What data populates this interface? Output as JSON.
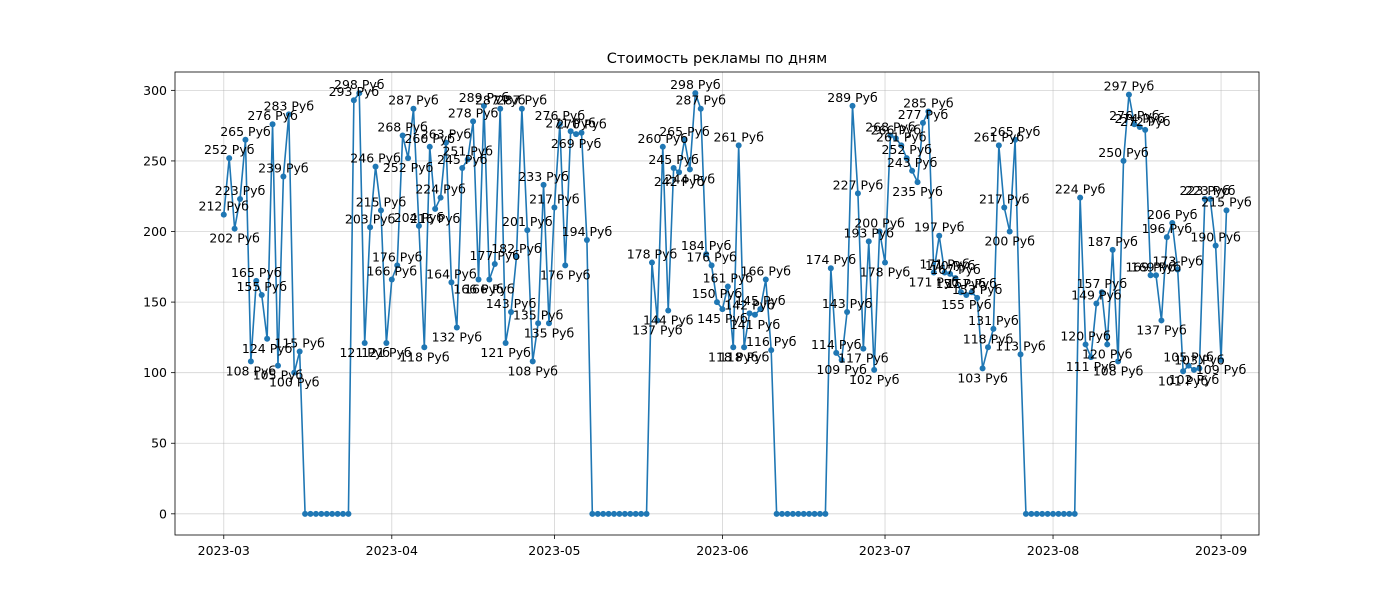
{
  "chart_data": {
    "type": "line",
    "title": "Стоимость рекламы по дням",
    "xlabel": "",
    "ylabel": "",
    "label_suffix": " Руб",
    "x_start": "2023-03-01",
    "x_end": "2023-08-31",
    "xlim": [
      "2023-02-20",
      "2023-09-08"
    ],
    "ylim": [
      -15,
      313
    ],
    "x_ticks": [
      {
        "date": "2023-03-01",
        "label": "2023-03"
      },
      {
        "date": "2023-04-01",
        "label": "2023-04"
      },
      {
        "date": "2023-05-01",
        "label": "2023-05"
      },
      {
        "date": "2023-06-01",
        "label": "2023-06"
      },
      {
        "date": "2023-07-01",
        "label": "2023-07"
      },
      {
        "date": "2023-08-01",
        "label": "2023-08"
      },
      {
        "date": "2023-09-01",
        "label": "2023-09"
      }
    ],
    "y_ticks": [
      0,
      50,
      100,
      150,
      200,
      250,
      300
    ],
    "grid": true,
    "color": "#1f77b4",
    "series": [
      {
        "values": [
          212,
          252,
          202,
          223,
          265,
          108,
          165,
          155,
          124,
          276,
          105,
          239,
          283,
          100,
          115,
          0,
          0,
          0,
          0,
          0,
          0,
          0,
          0,
          0,
          293,
          298,
          121,
          203,
          246,
          215,
          121,
          166,
          176,
          268,
          252,
          287,
          204,
          118,
          260,
          216,
          224,
          263,
          164,
          132,
          245,
          251,
          278,
          166,
          289,
          166,
          177,
          287,
          121,
          143,
          182,
          287,
          201,
          108,
          135,
          233,
          135,
          217,
          276,
          176,
          271,
          269,
          270,
          194,
          0,
          0,
          0,
          0,
          0,
          0,
          0,
          0,
          0,
          0,
          0,
          178,
          137,
          260,
          144,
          245,
          242,
          265,
          244,
          298,
          287,
          184,
          176,
          150,
          145,
          161,
          118,
          261,
          118,
          142,
          141,
          145,
          166,
          116,
          0,
          0,
          0,
          0,
          0,
          0,
          0,
          0,
          0,
          0,
          174,
          114,
          109,
          143,
          289,
          227,
          117,
          193,
          102,
          200,
          178,
          268,
          266,
          261,
          252,
          243,
          235,
          277,
          285,
          171,
          197,
          171,
          170,
          167,
          157,
          155,
          157,
          153,
          103,
          118,
          131,
          261,
          217,
          200,
          265,
          113,
          0,
          0,
          0,
          0,
          0,
          0,
          0,
          0,
          0,
          0,
          224,
          120,
          111,
          149,
          157,
          120,
          187,
          108,
          250,
          297,
          276,
          274,
          272,
          169,
          169,
          137,
          196,
          206,
          173,
          101,
          105,
          102,
          103,
          223,
          223,
          190,
          109,
          215
        ]
      }
    ]
  }
}
